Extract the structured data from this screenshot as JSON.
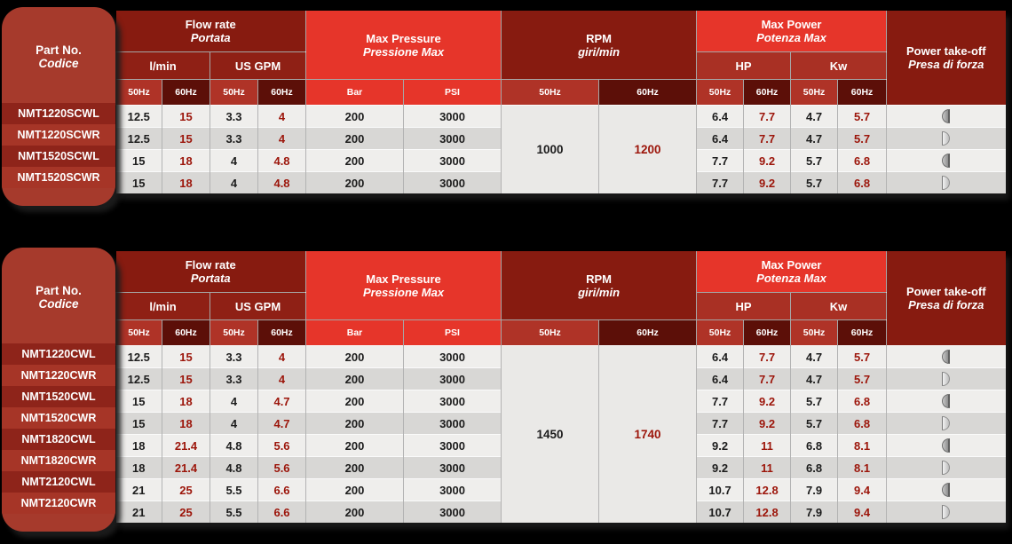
{
  "colors": {
    "background": "#000000",
    "bright_red": "#E6352A",
    "dark_maroon": "#871B10",
    "medium_red": "#A93024",
    "hz50_bg": "#AF3327",
    "hz60_bg": "#5C0F08",
    "part_box": "#A63A2C",
    "row_light": "#EFEEEC",
    "row_gray": "#D8D7D5",
    "value_60hz_text": "#9C150A"
  },
  "header": {
    "part_no": {
      "en": "Part No.",
      "it": "Codice"
    },
    "flow_rate": {
      "en": "Flow rate",
      "it": "Portata"
    },
    "flow_units": {
      "lmin": "l/min",
      "usgpm": "US GPM"
    },
    "max_pressure": {
      "en": "Max Pressure",
      "it": "Pressione Max"
    },
    "pressure_units": {
      "bar": "Bar",
      "psi": "PSI"
    },
    "rpm": {
      "en": "RPM",
      "it": "giri/min"
    },
    "max_power": {
      "en": "Max Power",
      "it": "Potenza Max"
    },
    "power_units": {
      "hp": "HP",
      "kw": "Kw"
    },
    "power_takeoff": {
      "en": "Power take-off",
      "it": "Presa di forza"
    },
    "hz50": "50Hz",
    "hz60": "60Hz"
  },
  "icons": {
    "takeoff_left": "left-half-disc-icon",
    "takeoff_right": "right-half-disc-icon"
  },
  "tables": [
    {
      "rpm": {
        "hz50": "1000",
        "hz60": "1200"
      },
      "rows": [
        {
          "part": "NMT1220SCWL",
          "lmin50": "12.5",
          "lmin60": "15",
          "gpm50": "3.3",
          "gpm60": "4",
          "bar": "200",
          "psi": "3000",
          "hp50": "6.4",
          "hp60": "7.7",
          "kw50": "4.7",
          "kw60": "5.7",
          "takeoff": "left"
        },
        {
          "part": "NMT1220SCWR",
          "lmin50": "12.5",
          "lmin60": "15",
          "gpm50": "3.3",
          "gpm60": "4",
          "bar": "200",
          "psi": "3000",
          "hp50": "6.4",
          "hp60": "7.7",
          "kw50": "4.7",
          "kw60": "5.7",
          "takeoff": "right"
        },
        {
          "part": "NMT1520SCWL",
          "lmin50": "15",
          "lmin60": "18",
          "gpm50": "4",
          "gpm60": "4.8",
          "bar": "200",
          "psi": "3000",
          "hp50": "7.7",
          "hp60": "9.2",
          "kw50": "5.7",
          "kw60": "6.8",
          "takeoff": "left"
        },
        {
          "part": "NMT1520SCWR",
          "lmin50": "15",
          "lmin60": "18",
          "gpm50": "4",
          "gpm60": "4.8",
          "bar": "200",
          "psi": "3000",
          "hp50": "7.7",
          "hp60": "9.2",
          "kw50": "5.7",
          "kw60": "6.8",
          "takeoff": "right"
        }
      ]
    },
    {
      "rpm": {
        "hz50": "1450",
        "hz60": "1740"
      },
      "rows": [
        {
          "part": "NMT1220CWL",
          "lmin50": "12.5",
          "lmin60": "15",
          "gpm50": "3.3",
          "gpm60": "4",
          "bar": "200",
          "psi": "3000",
          "hp50": "6.4",
          "hp60": "7.7",
          "kw50": "4.7",
          "kw60": "5.7",
          "takeoff": "left"
        },
        {
          "part": "NMT1220CWR",
          "lmin50": "12.5",
          "lmin60": "15",
          "gpm50": "3.3",
          "gpm60": "4",
          "bar": "200",
          "psi": "3000",
          "hp50": "6.4",
          "hp60": "7.7",
          "kw50": "4.7",
          "kw60": "5.7",
          "takeoff": "right"
        },
        {
          "part": "NMT1520CWL",
          "lmin50": "15",
          "lmin60": "18",
          "gpm50": "4",
          "gpm60": "4.7",
          "bar": "200",
          "psi": "3000",
          "hp50": "7.7",
          "hp60": "9.2",
          "kw50": "5.7",
          "kw60": "6.8",
          "takeoff": "left"
        },
        {
          "part": "NMT1520CWR",
          "lmin50": "15",
          "lmin60": "18",
          "gpm50": "4",
          "gpm60": "4.7",
          "bar": "200",
          "psi": "3000",
          "hp50": "7.7",
          "hp60": "9.2",
          "kw50": "5.7",
          "kw60": "6.8",
          "takeoff": "right"
        },
        {
          "part": "NMT1820CWL",
          "lmin50": "18",
          "lmin60": "21.4",
          "gpm50": "4.8",
          "gpm60": "5.6",
          "bar": "200",
          "psi": "3000",
          "hp50": "9.2",
          "hp60": "11",
          "kw50": "6.8",
          "kw60": "8.1",
          "takeoff": "left"
        },
        {
          "part": "NMT1820CWR",
          "lmin50": "18",
          "lmin60": "21.4",
          "gpm50": "4.8",
          "gpm60": "5.6",
          "bar": "200",
          "psi": "3000",
          "hp50": "9.2",
          "hp60": "11",
          "kw50": "6.8",
          "kw60": "8.1",
          "takeoff": "right"
        },
        {
          "part": "NMT2120CWL",
          "lmin50": "21",
          "lmin60": "25",
          "gpm50": "5.5",
          "gpm60": "6.6",
          "bar": "200",
          "psi": "3000",
          "hp50": "10.7",
          "hp60": "12.8",
          "kw50": "7.9",
          "kw60": "9.4",
          "takeoff": "left"
        },
        {
          "part": "NMT2120CWR",
          "lmin50": "21",
          "lmin60": "25",
          "gpm50": "5.5",
          "gpm60": "6.6",
          "bar": "200",
          "psi": "3000",
          "hp50": "10.7",
          "hp60": "12.8",
          "kw50": "7.9",
          "kw60": "9.4",
          "takeoff": "right"
        }
      ]
    }
  ]
}
